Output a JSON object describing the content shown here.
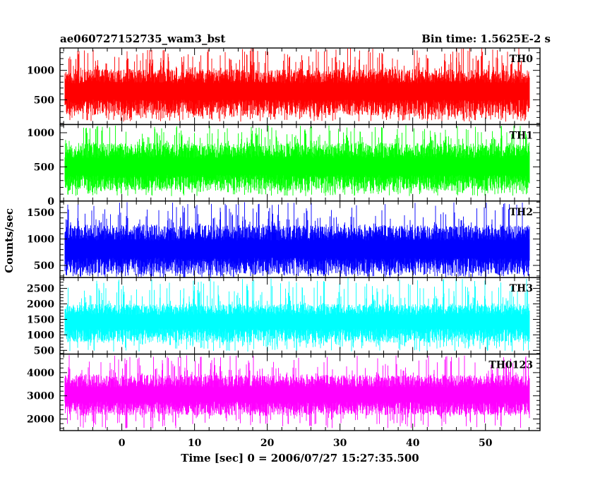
{
  "chart_data": {
    "type": "line",
    "title_left": "ae060727152735_wam3_bst",
    "title_right": "Bin time: 1.5625E-2 s",
    "xlabel": "Time [sec] 0 = 2006/07/27 15:27:35.500",
    "ylabel": "Counts/sec",
    "xlim": [
      -8.5,
      57.5
    ],
    "x_ticks": [
      0,
      10,
      20,
      30,
      40,
      50
    ],
    "x_data_range": [
      -7.8,
      56.0
    ],
    "grid": false,
    "panels": [
      {
        "name": "TH0",
        "color": "#ff0000",
        "ylim": [
          80,
          1380
        ],
        "y_ticks": [
          500,
          1000
        ],
        "y_minor": 100,
        "y_major": 500,
        "mean": 620,
        "low": 230,
        "high": 1020,
        "min": 130,
        "max": 1380
      },
      {
        "name": "TH1",
        "color": "#00ff00",
        "ylim": [
          0,
          1120
        ],
        "y_ticks": [
          0,
          500,
          1000
        ],
        "y_minor": 100,
        "y_major": 500,
        "mean": 480,
        "low": 150,
        "high": 850,
        "min": 70,
        "max": 1110
      },
      {
        "name": "TH2",
        "color": "#0000ff",
        "ylim": [
          270,
          1720
        ],
        "y_ticks": [
          500,
          1000,
          1500
        ],
        "y_minor": 100,
        "y_major": 500,
        "mean": 780,
        "low": 330,
        "high": 1260,
        "min": 280,
        "max": 1700
      },
      {
        "name": "TH3",
        "color": "#00ffff",
        "ylim": [
          380,
          2850
        ],
        "y_ticks": [
          500,
          1000,
          1500,
          2000,
          2500
        ],
        "y_minor": 100,
        "y_major": 500,
        "mean": 1400,
        "low": 750,
        "high": 2000,
        "min": 450,
        "max": 2830
      },
      {
        "name": "TH0123",
        "color": "#ff00ff",
        "ylim": [
          1500,
          4800
        ],
        "y_ticks": [
          2000,
          3000,
          4000
        ],
        "y_minor": 200,
        "y_major": 1000,
        "mean": 3000,
        "low": 2150,
        "high": 3900,
        "min": 1600,
        "max": 4750
      }
    ]
  }
}
